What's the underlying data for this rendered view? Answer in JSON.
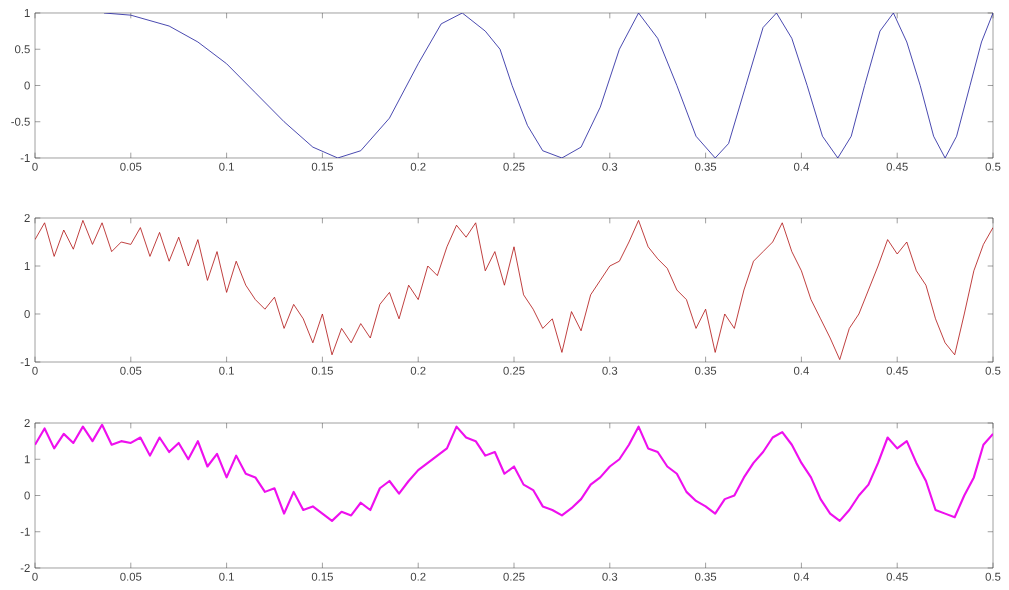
{
  "chart_data": [
    {
      "type": "line",
      "x": [
        0.036,
        0.05,
        0.07,
        0.085,
        0.1,
        0.115,
        0.13,
        0.145,
        0.158,
        0.17,
        0.185,
        0.2,
        0.212,
        0.223,
        0.235,
        0.2427,
        0.249,
        0.257,
        0.265,
        0.275,
        0.285,
        0.295,
        0.305,
        0.315,
        0.325,
        0.335,
        0.345,
        0.355,
        0.362,
        0.371,
        0.38,
        0.387,
        0.395,
        0.403,
        0.411,
        0.419,
        0.426,
        0.433,
        0.441,
        0.448,
        0.455,
        0.462,
        0.469,
        0.475,
        0.481,
        0.488,
        0.494,
        0.5
      ],
      "series": [
        {
          "color": "#1c1c9c",
          "values": [
            1,
            0.97,
            0.82,
            0.6,
            0.3,
            -0.1,
            -0.5,
            -0.85,
            -1,
            -0.9,
            -0.45,
            0.3,
            0.85,
            1,
            0.75,
            0.5,
            0,
            -0.55,
            -0.9,
            -1,
            -0.85,
            -0.3,
            0.5,
            1,
            0.65,
            0,
            -0.7,
            -1,
            -0.8,
            0,
            0.8,
            1,
            0.65,
            0,
            -0.7,
            -1,
            -0.7,
            0,
            0.75,
            1,
            0.6,
            0,
            -0.7,
            -1,
            -0.7,
            0,
            0.6,
            1
          ]
        }
      ],
      "xlim": [
        0,
        0.5
      ],
      "ylim": [
        -1,
        1
      ],
      "xticks": [
        0,
        0.05,
        0.1,
        0.15,
        0.2,
        0.25,
        0.3,
        0.35,
        0.4,
        0.45,
        0.5
      ],
      "yticks": [
        -1,
        -0.5,
        0,
        0.5,
        1
      ],
      "grid": false
    },
    {
      "type": "line",
      "x": [
        0,
        0.005,
        0.01,
        0.015,
        0.02,
        0.025,
        0.03,
        0.035,
        0.04,
        0.045,
        0.05,
        0.055,
        0.06,
        0.065,
        0.07,
        0.075,
        0.08,
        0.085,
        0.09,
        0.095,
        0.1,
        0.105,
        0.11,
        0.115,
        0.12,
        0.125,
        0.13,
        0.135,
        0.14,
        0.145,
        0.15,
        0.155,
        0.16,
        0.165,
        0.17,
        0.175,
        0.18,
        0.185,
        0.19,
        0.195,
        0.2,
        0.205,
        0.21,
        0.215,
        0.22,
        0.225,
        0.23,
        0.235,
        0.24,
        0.245,
        0.25,
        0.255,
        0.26,
        0.265,
        0.27,
        0.275,
        0.28,
        0.285,
        0.29,
        0.295,
        0.3,
        0.305,
        0.31,
        0.315,
        0.32,
        0.325,
        0.33,
        0.335,
        0.34,
        0.345,
        0.35,
        0.355,
        0.36,
        0.365,
        0.37,
        0.375,
        0.38,
        0.385,
        0.39,
        0.395,
        0.4,
        0.405,
        0.41,
        0.415,
        0.42,
        0.425,
        0.43,
        0.435,
        0.44,
        0.445,
        0.45,
        0.455,
        0.46,
        0.465,
        0.47,
        0.475,
        0.48,
        0.485,
        0.49,
        0.495,
        0.5
      ],
      "series": [
        {
          "color": "#b01010",
          "values": [
            1.55,
            1.9,
            1.2,
            1.75,
            1.35,
            1.95,
            1.45,
            1.9,
            1.3,
            1.5,
            1.45,
            1.8,
            1.2,
            1.7,
            1.1,
            1.6,
            1.0,
            1.55,
            0.7,
            1.3,
            0.45,
            1.1,
            0.6,
            0.3,
            0.1,
            0.35,
            -0.3,
            0.2,
            -0.1,
            -0.6,
            0.0,
            -0.85,
            -0.3,
            -0.6,
            -0.2,
            -0.5,
            0.2,
            0.45,
            -0.1,
            0.6,
            0.3,
            1.0,
            0.8,
            1.4,
            1.85,
            1.6,
            1.9,
            0.9,
            1.3,
            0.6,
            1.4,
            0.4,
            0.1,
            -0.3,
            -0.1,
            -0.8,
            0.05,
            -0.35,
            0.4,
            0.7,
            1.0,
            1.1,
            1.5,
            1.95,
            1.4,
            1.15,
            0.95,
            0.5,
            0.3,
            -0.3,
            0.1,
            -0.8,
            0.0,
            -0.3,
            0.5,
            1.1,
            1.3,
            1.5,
            1.9,
            1.3,
            0.9,
            0.3,
            -0.1,
            -0.5,
            -0.95,
            -0.3,
            0.0,
            0.5,
            1.0,
            1.55,
            1.25,
            1.5,
            0.9,
            0.6,
            -0.1,
            -0.6,
            -0.85,
            0.0,
            0.9,
            1.45,
            1.8
          ]
        }
      ],
      "xlim": [
        0,
        0.5
      ],
      "ylim": [
        -1,
        2
      ],
      "xticks": [
        0,
        0.05,
        0.1,
        0.15,
        0.2,
        0.25,
        0.3,
        0.35,
        0.4,
        0.45,
        0.5
      ],
      "yticks": [
        -1,
        0,
        1,
        2
      ],
      "grid": false
    },
    {
      "type": "line",
      "x": [
        0,
        0.005,
        0.01,
        0.015,
        0.02,
        0.025,
        0.03,
        0.035,
        0.04,
        0.045,
        0.05,
        0.055,
        0.06,
        0.065,
        0.07,
        0.075,
        0.08,
        0.085,
        0.09,
        0.095,
        0.1,
        0.105,
        0.11,
        0.115,
        0.12,
        0.125,
        0.13,
        0.135,
        0.14,
        0.145,
        0.15,
        0.155,
        0.16,
        0.165,
        0.17,
        0.175,
        0.18,
        0.185,
        0.19,
        0.195,
        0.2,
        0.205,
        0.21,
        0.215,
        0.22,
        0.225,
        0.23,
        0.235,
        0.24,
        0.245,
        0.25,
        0.255,
        0.26,
        0.265,
        0.27,
        0.275,
        0.28,
        0.285,
        0.29,
        0.295,
        0.3,
        0.305,
        0.31,
        0.315,
        0.32,
        0.325,
        0.33,
        0.335,
        0.34,
        0.345,
        0.35,
        0.355,
        0.36,
        0.365,
        0.37,
        0.375,
        0.38,
        0.385,
        0.39,
        0.395,
        0.4,
        0.405,
        0.41,
        0.415,
        0.42,
        0.425,
        0.43,
        0.435,
        0.44,
        0.445,
        0.45,
        0.455,
        0.46,
        0.465,
        0.47,
        0.475,
        0.48,
        0.485,
        0.49,
        0.495,
        0.5
      ],
      "series": [
        {
          "color": "#ee10ee",
          "values": [
            1.4,
            1.85,
            1.3,
            1.7,
            1.45,
            1.9,
            1.5,
            1.95,
            1.4,
            1.5,
            1.45,
            1.6,
            1.1,
            1.6,
            1.2,
            1.45,
            1.0,
            1.5,
            0.8,
            1.15,
            0.5,
            1.1,
            0.6,
            0.5,
            0.1,
            0.2,
            -0.5,
            0.1,
            -0.4,
            -0.3,
            -0.5,
            -0.7,
            -0.45,
            -0.55,
            -0.2,
            -0.4,
            0.2,
            0.4,
            0.05,
            0.4,
            0.7,
            0.9,
            1.1,
            1.3,
            1.9,
            1.6,
            1.5,
            1.1,
            1.2,
            0.6,
            0.8,
            0.3,
            0.15,
            -0.3,
            -0.4,
            -0.55,
            -0.35,
            -0.1,
            0.3,
            0.5,
            0.8,
            1.0,
            1.4,
            1.9,
            1.3,
            1.2,
            0.8,
            0.6,
            0.1,
            -0.15,
            -0.3,
            -0.5,
            -0.1,
            0.0,
            0.5,
            0.9,
            1.2,
            1.6,
            1.75,
            1.4,
            0.9,
            0.5,
            -0.1,
            -0.5,
            -0.7,
            -0.4,
            0.0,
            0.3,
            0.9,
            1.6,
            1.3,
            1.5,
            0.9,
            0.4,
            -0.4,
            -0.5,
            -0.6,
            0.0,
            0.5,
            1.4,
            1.7
          ]
        }
      ],
      "xlim": [
        0,
        0.5
      ],
      "ylim": [
        -2,
        2
      ],
      "xticks": [
        0,
        0.05,
        0.1,
        0.15,
        0.2,
        0.25,
        0.3,
        0.35,
        0.4,
        0.45,
        0.5
      ],
      "yticks": [
        -2,
        -1,
        0,
        1,
        2
      ],
      "grid": false
    }
  ]
}
